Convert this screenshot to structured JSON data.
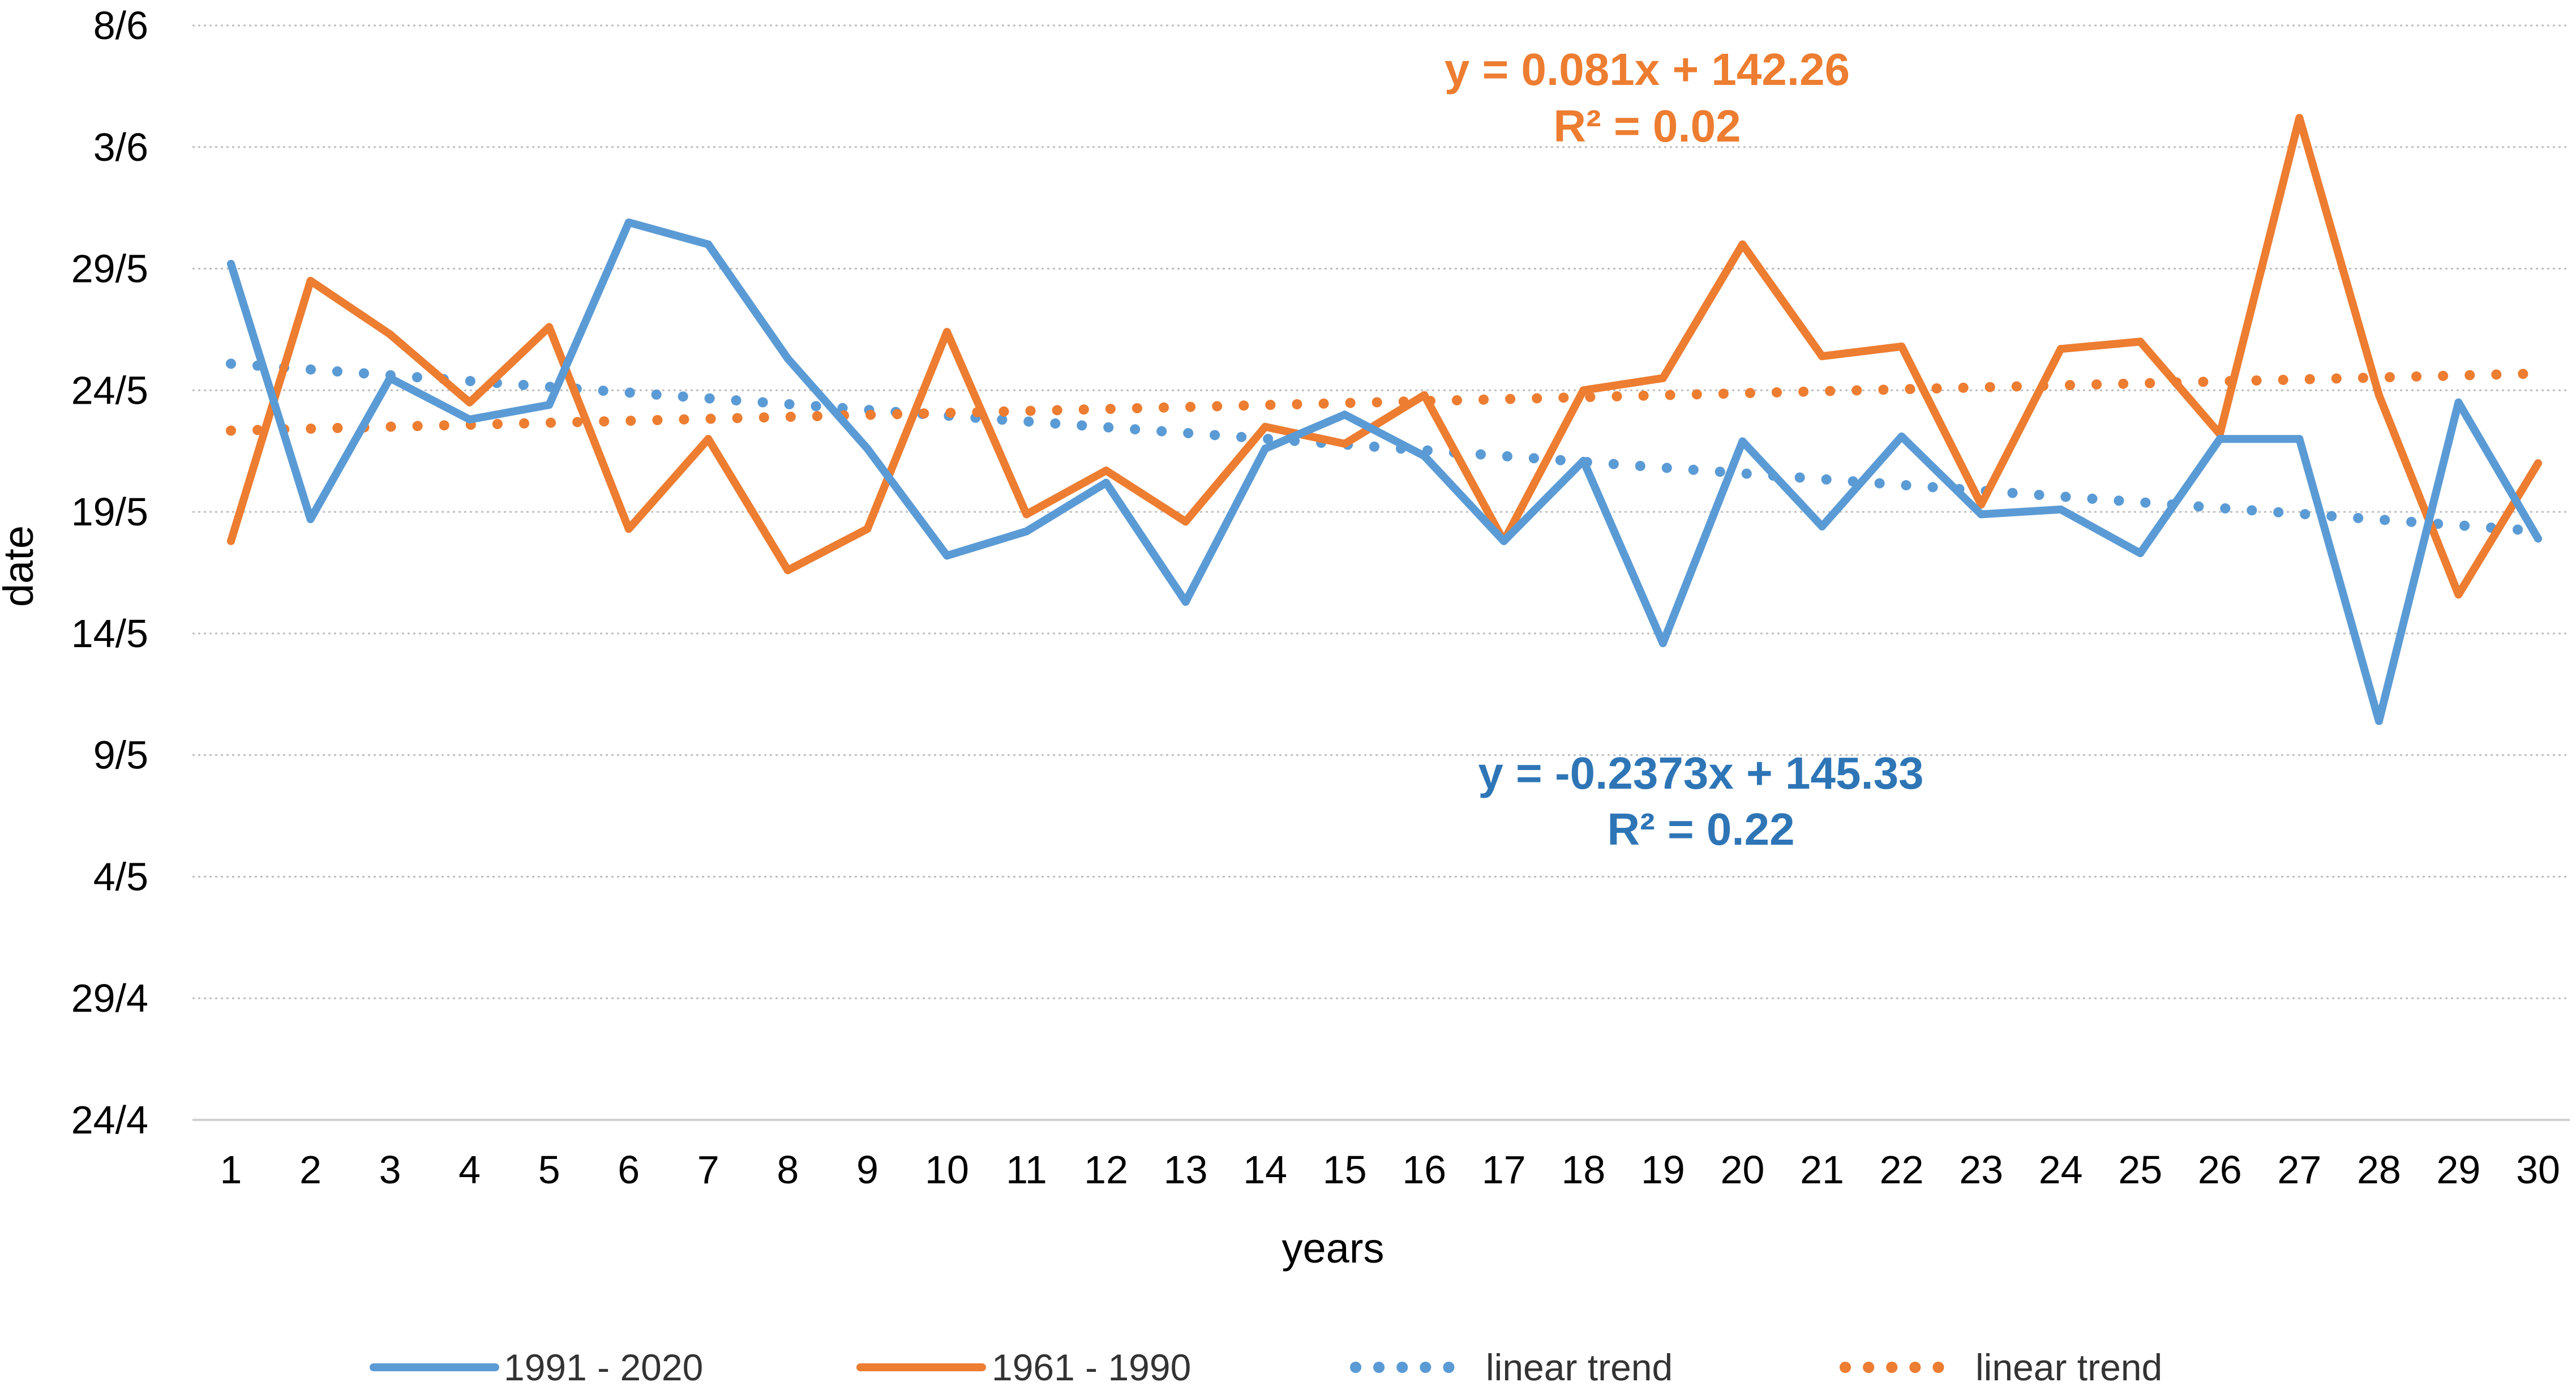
{
  "chart_data": {
    "type": "line",
    "xlabel": "years",
    "ylabel": "date",
    "x": [
      1,
      2,
      3,
      4,
      5,
      6,
      7,
      8,
      9,
      10,
      11,
      12,
      13,
      14,
      15,
      16,
      17,
      18,
      19,
      20,
      21,
      22,
      23,
      24,
      25,
      26,
      27,
      28,
      29,
      30
    ],
    "ylim": [
      114,
      159
    ],
    "y_ticks": [
      {
        "value": 114,
        "label": "24/4"
      },
      {
        "value": 119,
        "label": "29/4"
      },
      {
        "value": 124,
        "label": "4/5"
      },
      {
        "value": 129,
        "label": "9/5"
      },
      {
        "value": 134,
        "label": "14/5"
      },
      {
        "value": 139,
        "label": "19/5"
      },
      {
        "value": 144,
        "label": "24/5"
      },
      {
        "value": 149,
        "label": "29/5"
      },
      {
        "value": 154,
        "label": "3/6"
      },
      {
        "value": 159,
        "label": "8/6"
      }
    ],
    "grid": "horizontal dotted",
    "series": [
      {
        "name": "1991 - 2020",
        "color": "#5B9BD5",
        "style": "solid",
        "values": [
          149.2,
          138.7,
          144.5,
          142.8,
          143.4,
          150.9,
          150.0,
          145.3,
          141.6,
          137.2,
          138.2,
          140.2,
          135.3,
          141.6,
          143.0,
          141.3,
          137.8,
          141.1,
          133.6,
          141.9,
          138.4,
          142.1,
          138.9,
          139.1,
          137.3,
          142.0,
          142.0,
          130.4,
          143.5,
          137.9
        ]
      },
      {
        "name": "1961 - 1990",
        "color": "#ED7D31",
        "style": "solid",
        "values": [
          137.8,
          148.5,
          146.3,
          143.5,
          146.6,
          138.3,
          142.0,
          136.6,
          138.3,
          146.4,
          138.9,
          140.7,
          138.6,
          142.5,
          141.8,
          143.8,
          137.8,
          144.0,
          144.5,
          150.0,
          145.4,
          145.8,
          139.3,
          145.7,
          146.0,
          142.2,
          155.2,
          143.8,
          135.6,
          141.0
        ]
      },
      {
        "name": "linear trend",
        "color": "#5B9BD5",
        "style": "dotted",
        "trend_of": "1991 - 2020",
        "slope": -0.2373,
        "intercept": 145.33
      },
      {
        "name": "linear trend",
        "color": "#ED7D31",
        "style": "dotted",
        "trend_of": "1961 - 1990",
        "slope": 0.081,
        "intercept": 142.26
      }
    ],
    "annotations": [
      {
        "series": "1961 - 1990",
        "equation": "y = 0.081x + 142.26",
        "r2": "R² = 0.02",
        "color": "#ED7D31"
      },
      {
        "series": "1991 - 2020",
        "equation": "y = -0.2373x + 145.33",
        "r2": "R² = 0.22",
        "color": "#2E75B6"
      }
    ],
    "legend_position": "bottom"
  }
}
